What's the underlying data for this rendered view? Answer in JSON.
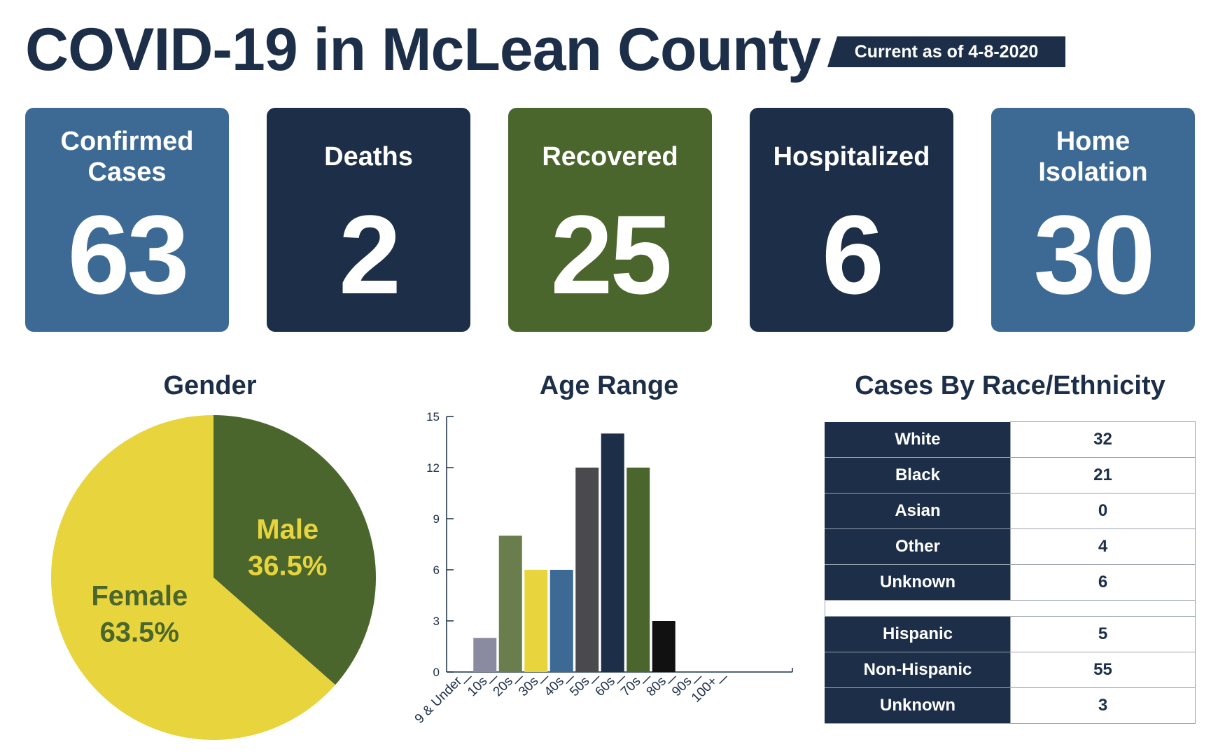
{
  "header": {
    "title": "COVID-19 in McLean County",
    "date_tag": "Current as of 4-8-2020"
  },
  "cards": [
    {
      "label": "Confirmed Cases",
      "value": "63",
      "color": "#3d6a94"
    },
    {
      "label": "Deaths",
      "value": "2",
      "color": "#1c2e48"
    },
    {
      "label": "Recovered",
      "value": "25",
      "color": "#4a662c"
    },
    {
      "label": "Hospitalized",
      "value": "6",
      "color": "#1c2e48"
    },
    {
      "label": "Home Isolation",
      "value": "30",
      "color": "#3d6a94"
    }
  ],
  "sections": {
    "gender": "Gender",
    "age": "Age Range",
    "race": "Cases By Race/Ethnicity"
  },
  "chart_data": [
    {
      "type": "pie",
      "title": "Gender",
      "slices": [
        {
          "label": "Male",
          "value": 36.5,
          "display": "36.5%",
          "color": "#4a662c",
          "text_color": "#e8d43c"
        },
        {
          "label": "Female",
          "value": 63.5,
          "display": "63.5%",
          "color": "#e8d43c",
          "text_color": "#4a662c"
        }
      ]
    },
    {
      "type": "bar",
      "title": "Age Range",
      "categories": [
        "9 & Under",
        "10s",
        "20s",
        "30s",
        "40s",
        "50s",
        "60s",
        "70s",
        "80s",
        "90s",
        "100+"
      ],
      "values": [
        0,
        2,
        8,
        6,
        6,
        12,
        14,
        12,
        3,
        0,
        0
      ],
      "colors": [
        "#8a8aa0",
        "#8a8aa0",
        "#6a7d4c",
        "#e8d43c",
        "#3d6a94",
        "#4a4a4e",
        "#1c2e48",
        "#4a662c",
        "#111111",
        "#111111",
        "#111111"
      ],
      "yticks": [
        0,
        3,
        6,
        9,
        12,
        15
      ],
      "ylim": [
        0,
        15
      ]
    },
    {
      "type": "table",
      "title": "Cases By Race/Ethnicity",
      "groups": [
        [
          {
            "label": "White",
            "value": "32"
          },
          {
            "label": "Black",
            "value": "21"
          },
          {
            "label": "Asian",
            "value": "0"
          },
          {
            "label": "Other",
            "value": "4"
          },
          {
            "label": "Unknown",
            "value": "6"
          }
        ],
        [
          {
            "label": "Hispanic",
            "value": "5"
          },
          {
            "label": "Non-Hispanic",
            "value": "55"
          },
          {
            "label": "Unknown",
            "value": "3"
          }
        ]
      ]
    }
  ]
}
